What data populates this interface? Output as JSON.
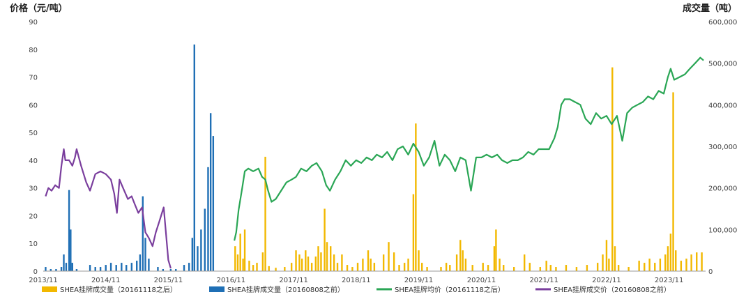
{
  "chart_data": {
    "type": "bar+line",
    "title": "",
    "left_axis": {
      "label": "价格（元/吨）",
      "ticks": [
        "0",
        "10",
        "20",
        "30",
        "40",
        "50",
        "60",
        "70",
        "80",
        "90"
      ],
      "range": [
        0,
        90
      ]
    },
    "right_axis": {
      "label": "成交量（吨）",
      "ticks": [
        "0",
        "100,000",
        "200,000",
        "300,000",
        "400,000",
        "500,000",
        "600,000"
      ],
      "range": [
        0,
        600000
      ]
    },
    "x_axis": {
      "ticks": [
        "2013/11",
        "2014/11",
        "2015/11",
        "2016/11",
        "2017/11",
        "2018/11",
        "2019/11",
        "2020/11",
        "2021/11",
        "2022/11",
        "2023/11"
      ],
      "range": [
        "2013-11-01",
        "2024-06-01"
      ]
    },
    "grid": false,
    "legend_position": "bottom",
    "series": [
      {
        "name": "SHEA挂牌成交量（20161118之后）",
        "type": "bar",
        "axis": "right",
        "color": "#f2b800",
        "points": [
          [
            "2016-11-25",
            60000
          ],
          [
            "2016-12-10",
            40000
          ],
          [
            "2016-12-25",
            90000
          ],
          [
            "2017-01-10",
            30000
          ],
          [
            "2017-01-20",
            100000
          ],
          [
            "2017-02-15",
            25000
          ],
          [
            "2017-03-10",
            15000
          ],
          [
            "2017-04-01",
            20000
          ],
          [
            "2017-05-05",
            45000
          ],
          [
            "2017-05-20",
            275000
          ],
          [
            "2017-06-10",
            12000
          ],
          [
            "2017-07-20",
            8000
          ],
          [
            "2017-09-10",
            10000
          ],
          [
            "2017-10-20",
            20000
          ],
          [
            "2017-11-15",
            50000
          ],
          [
            "2017-12-05",
            40000
          ],
          [
            "2017-12-20",
            30000
          ],
          [
            "2018-01-10",
            50000
          ],
          [
            "2018-01-25",
            35000
          ],
          [
            "2018-02-15",
            20000
          ],
          [
            "2018-03-10",
            35000
          ],
          [
            "2018-03-25",
            60000
          ],
          [
            "2018-04-10",
            45000
          ],
          [
            "2018-05-01",
            150000
          ],
          [
            "2018-05-15",
            70000
          ],
          [
            "2018-06-05",
            60000
          ],
          [
            "2018-06-25",
            40000
          ],
          [
            "2018-07-15",
            20000
          ],
          [
            "2018-08-10",
            40000
          ],
          [
            "2018-09-10",
            15000
          ],
          [
            "2018-10-10",
            10000
          ],
          [
            "2018-11-10",
            20000
          ],
          [
            "2018-12-10",
            30000
          ],
          [
            "2019-01-10",
            50000
          ],
          [
            "2019-01-25",
            30000
          ],
          [
            "2019-02-15",
            20000
          ],
          [
            "2019-04-10",
            40000
          ],
          [
            "2019-05-10",
            70000
          ],
          [
            "2019-06-10",
            45000
          ],
          [
            "2019-07-10",
            15000
          ],
          [
            "2019-08-10",
            20000
          ],
          [
            "2019-09-01",
            30000
          ],
          [
            "2019-10-01",
            185000
          ],
          [
            "2019-10-15",
            355000
          ],
          [
            "2019-11-01",
            50000
          ],
          [
            "2019-11-20",
            20000
          ],
          [
            "2019-12-20",
            10000
          ],
          [
            "2020-03-10",
            10000
          ],
          [
            "2020-04-10",
            20000
          ],
          [
            "2020-05-01",
            15000
          ],
          [
            "2020-06-10",
            40000
          ],
          [
            "2020-07-01",
            75000
          ],
          [
            "2020-07-15",
            50000
          ],
          [
            "2020-08-01",
            30000
          ],
          [
            "2020-09-10",
            15000
          ],
          [
            "2020-11-10",
            20000
          ],
          [
            "2020-12-10",
            15000
          ],
          [
            "2021-01-15",
            60000
          ],
          [
            "2021-01-25",
            100000
          ],
          [
            "2021-02-15",
            30000
          ],
          [
            "2021-03-10",
            15000
          ],
          [
            "2021-05-10",
            10000
          ],
          [
            "2021-07-10",
            40000
          ],
          [
            "2021-08-10",
            20000
          ],
          [
            "2021-10-10",
            10000
          ],
          [
            "2021-11-15",
            25000
          ],
          [
            "2021-12-10",
            15000
          ],
          [
            "2022-01-10",
            10000
          ],
          [
            "2022-03-10",
            15000
          ],
          [
            "2022-05-10",
            10000
          ],
          [
            "2022-07-10",
            15000
          ],
          [
            "2022-09-10",
            20000
          ],
          [
            "2022-10-10",
            40000
          ],
          [
            "2022-11-01",
            75000
          ],
          [
            "2022-11-15",
            30000
          ],
          [
            "2022-12-05",
            490000
          ],
          [
            "2022-12-20",
            60000
          ],
          [
            "2023-01-10",
            15000
          ],
          [
            "2023-03-10",
            10000
          ],
          [
            "2023-05-10",
            25000
          ],
          [
            "2023-06-10",
            20000
          ],
          [
            "2023-07-10",
            30000
          ],
          [
            "2023-08-10",
            20000
          ],
          [
            "2023-09-10",
            30000
          ],
          [
            "2023-10-10",
            40000
          ],
          [
            "2023-10-25",
            60000
          ],
          [
            "2023-11-10",
            90000
          ],
          [
            "2023-11-25",
            430000
          ],
          [
            "2023-12-10",
            50000
          ],
          [
            "2024-01-10",
            25000
          ],
          [
            "2024-02-10",
            30000
          ],
          [
            "2024-03-10",
            40000
          ],
          [
            "2024-04-10",
            45000
          ],
          [
            "2024-05-10",
            45000
          ]
        ]
      },
      {
        "name": "SHEA挂牌成交量（20160808之前）",
        "type": "bar",
        "axis": "right",
        "color": "#1f6fb5",
        "points": [
          [
            "2013-11-15",
            10000
          ],
          [
            "2013-12-15",
            5000
          ],
          [
            "2014-01-15",
            5000
          ],
          [
            "2014-02-15",
            10000
          ],
          [
            "2014-03-01",
            40000
          ],
          [
            "2014-03-15",
            20000
          ],
          [
            "2014-04-01",
            195000
          ],
          [
            "2014-04-10",
            100000
          ],
          [
            "2014-04-20",
            20000
          ],
          [
            "2014-05-15",
            5000
          ],
          [
            "2014-08-01",
            15000
          ],
          [
            "2014-09-01",
            10000
          ],
          [
            "2014-10-01",
            10000
          ],
          [
            "2014-11-01",
            15000
          ],
          [
            "2014-12-01",
            20000
          ],
          [
            "2015-01-01",
            15000
          ],
          [
            "2015-02-01",
            20000
          ],
          [
            "2015-03-01",
            15000
          ],
          [
            "2015-04-01",
            20000
          ],
          [
            "2015-05-01",
            25000
          ],
          [
            "2015-05-20",
            40000
          ],
          [
            "2015-06-05",
            180000
          ],
          [
            "2015-06-20",
            80000
          ],
          [
            "2015-07-10",
            30000
          ],
          [
            "2015-09-01",
            10000
          ],
          [
            "2015-10-01",
            5000
          ],
          [
            "2015-11-15",
            5000
          ],
          [
            "2015-12-15",
            5000
          ],
          [
            "2016-02-01",
            15000
          ],
          [
            "2016-03-01",
            20000
          ],
          [
            "2016-03-20",
            80000
          ],
          [
            "2016-04-01",
            545000
          ],
          [
            "2016-04-20",
            60000
          ],
          [
            "2016-05-10",
            100000
          ],
          [
            "2016-06-01",
            150000
          ],
          [
            "2016-06-20",
            250000
          ],
          [
            "2016-07-05",
            380000
          ],
          [
            "2016-07-20",
            325000
          ]
        ]
      },
      {
        "name": "SHEA挂牌均价（20161118之后）",
        "type": "line",
        "axis": "left",
        "color": "#2aa655",
        "points": [
          [
            "2016-11-20",
            11
          ],
          [
            "2016-12-01",
            14
          ],
          [
            "2016-12-15",
            22
          ],
          [
            "2017-01-05",
            30
          ],
          [
            "2017-01-20",
            36
          ],
          [
            "2017-02-10",
            37
          ],
          [
            "2017-03-10",
            36
          ],
          [
            "2017-04-10",
            37
          ],
          [
            "2017-05-01",
            34
          ],
          [
            "2017-05-20",
            33
          ],
          [
            "2017-06-05",
            29
          ],
          [
            "2017-06-25",
            25
          ],
          [
            "2017-07-20",
            26
          ],
          [
            "2017-08-20",
            29
          ],
          [
            "2017-09-20",
            32
          ],
          [
            "2017-10-20",
            33
          ],
          [
            "2017-11-15",
            34
          ],
          [
            "2017-12-15",
            37
          ],
          [
            "2018-01-15",
            36
          ],
          [
            "2018-02-15",
            38
          ],
          [
            "2018-03-15",
            39
          ],
          [
            "2018-04-15",
            36
          ],
          [
            "2018-05-10",
            31
          ],
          [
            "2018-06-01",
            29
          ],
          [
            "2018-07-01",
            33
          ],
          [
            "2018-08-01",
            36
          ],
          [
            "2018-09-01",
            40
          ],
          [
            "2018-10-01",
            38
          ],
          [
            "2018-11-01",
            40
          ],
          [
            "2018-12-01",
            39
          ],
          [
            "2019-01-01",
            41
          ],
          [
            "2019-02-01",
            40
          ],
          [
            "2019-03-01",
            42
          ],
          [
            "2019-04-01",
            41
          ],
          [
            "2019-05-01",
            43
          ],
          [
            "2019-06-01",
            40
          ],
          [
            "2019-07-01",
            44
          ],
          [
            "2019-08-01",
            45
          ],
          [
            "2019-09-01",
            42
          ],
          [
            "2019-10-01",
            46
          ],
          [
            "2019-11-01",
            43
          ],
          [
            "2019-12-01",
            38
          ],
          [
            "2020-01-01",
            41
          ],
          [
            "2020-02-01",
            47
          ],
          [
            "2020-03-01",
            38
          ],
          [
            "2020-04-01",
            42
          ],
          [
            "2020-05-01",
            40
          ],
          [
            "2020-06-01",
            36
          ],
          [
            "2020-07-01",
            41
          ],
          [
            "2020-08-01",
            40
          ],
          [
            "2020-09-01",
            29
          ],
          [
            "2020-10-01",
            41
          ],
          [
            "2020-11-01",
            41
          ],
          [
            "2020-12-01",
            42
          ],
          [
            "2021-01-01",
            41
          ],
          [
            "2021-02-01",
            42
          ],
          [
            "2021-03-01",
            40
          ],
          [
            "2021-04-01",
            39
          ],
          [
            "2021-05-01",
            40
          ],
          [
            "2021-06-01",
            40
          ],
          [
            "2021-07-01",
            41
          ],
          [
            "2021-08-01",
            43
          ],
          [
            "2021-09-01",
            42
          ],
          [
            "2021-10-01",
            44
          ],
          [
            "2021-11-01",
            44
          ],
          [
            "2021-12-01",
            44
          ],
          [
            "2022-01-01",
            48
          ],
          [
            "2022-01-20",
            52
          ],
          [
            "2022-02-10",
            60
          ],
          [
            "2022-03-01",
            62
          ],
          [
            "2022-04-01",
            62
          ],
          [
            "2022-05-01",
            61
          ],
          [
            "2022-06-01",
            60
          ],
          [
            "2022-07-01",
            55
          ],
          [
            "2022-08-01",
            53
          ],
          [
            "2022-09-01",
            57
          ],
          [
            "2022-10-01",
            55
          ],
          [
            "2022-11-01",
            56
          ],
          [
            "2022-12-01",
            53
          ],
          [
            "2023-01-01",
            56
          ],
          [
            "2023-02-01",
            47
          ],
          [
            "2023-03-01",
            57
          ],
          [
            "2023-04-01",
            59
          ],
          [
            "2023-05-01",
            60
          ],
          [
            "2023-06-01",
            61
          ],
          [
            "2023-07-01",
            63
          ],
          [
            "2023-08-01",
            62
          ],
          [
            "2023-09-01",
            65
          ],
          [
            "2023-10-01",
            64
          ],
          [
            "2023-10-25",
            70
          ],
          [
            "2023-11-10",
            73
          ],
          [
            "2023-12-01",
            69
          ],
          [
            "2024-01-01",
            70
          ],
          [
            "2024-02-01",
            71
          ],
          [
            "2024-03-01",
            73
          ],
          [
            "2024-04-01",
            75
          ],
          [
            "2024-05-01",
            77
          ],
          [
            "2024-05-20",
            76
          ]
        ]
      },
      {
        "name": "SHEA挂牌成交价（20160808之前）",
        "type": "line",
        "axis": "left",
        "color": "#7a3e9d",
        "points": [
          [
            "2013-11-15",
            27
          ],
          [
            "2013-12-01",
            30
          ],
          [
            "2013-12-20",
            29
          ],
          [
            "2014-01-10",
            31
          ],
          [
            "2014-02-01",
            30
          ],
          [
            "2014-02-15",
            38
          ],
          [
            "2014-03-01",
            44
          ],
          [
            "2014-03-10",
            40
          ],
          [
            "2014-04-01",
            40
          ],
          [
            "2014-04-20",
            38
          ],
          [
            "2014-05-05",
            41
          ],
          [
            "2014-05-15",
            44
          ],
          [
            "2014-06-10",
            38
          ],
          [
            "2014-07-10",
            32
          ],
          [
            "2014-08-01",
            29
          ],
          [
            "2014-09-01",
            35
          ],
          [
            "2014-10-01",
            36
          ],
          [
            "2014-11-01",
            35
          ],
          [
            "2014-12-01",
            33
          ],
          [
            "2014-12-20",
            28
          ],
          [
            "2015-01-05",
            21
          ],
          [
            "2015-01-20",
            33
          ],
          [
            "2015-02-10",
            30
          ],
          [
            "2015-03-10",
            26
          ],
          [
            "2015-04-01",
            27
          ],
          [
            "2015-04-20",
            24
          ],
          [
            "2015-05-10",
            21
          ],
          [
            "2015-06-01",
            23
          ],
          [
            "2015-06-20",
            14
          ],
          [
            "2015-07-10",
            12
          ],
          [
            "2015-08-01",
            9
          ],
          [
            "2015-08-20",
            14
          ],
          [
            "2015-09-10",
            18
          ],
          [
            "2015-09-25",
            21
          ],
          [
            "2015-10-05",
            23
          ],
          [
            "2015-11-01",
            4
          ],
          [
            "2015-11-15",
            1
          ]
        ]
      }
    ]
  }
}
